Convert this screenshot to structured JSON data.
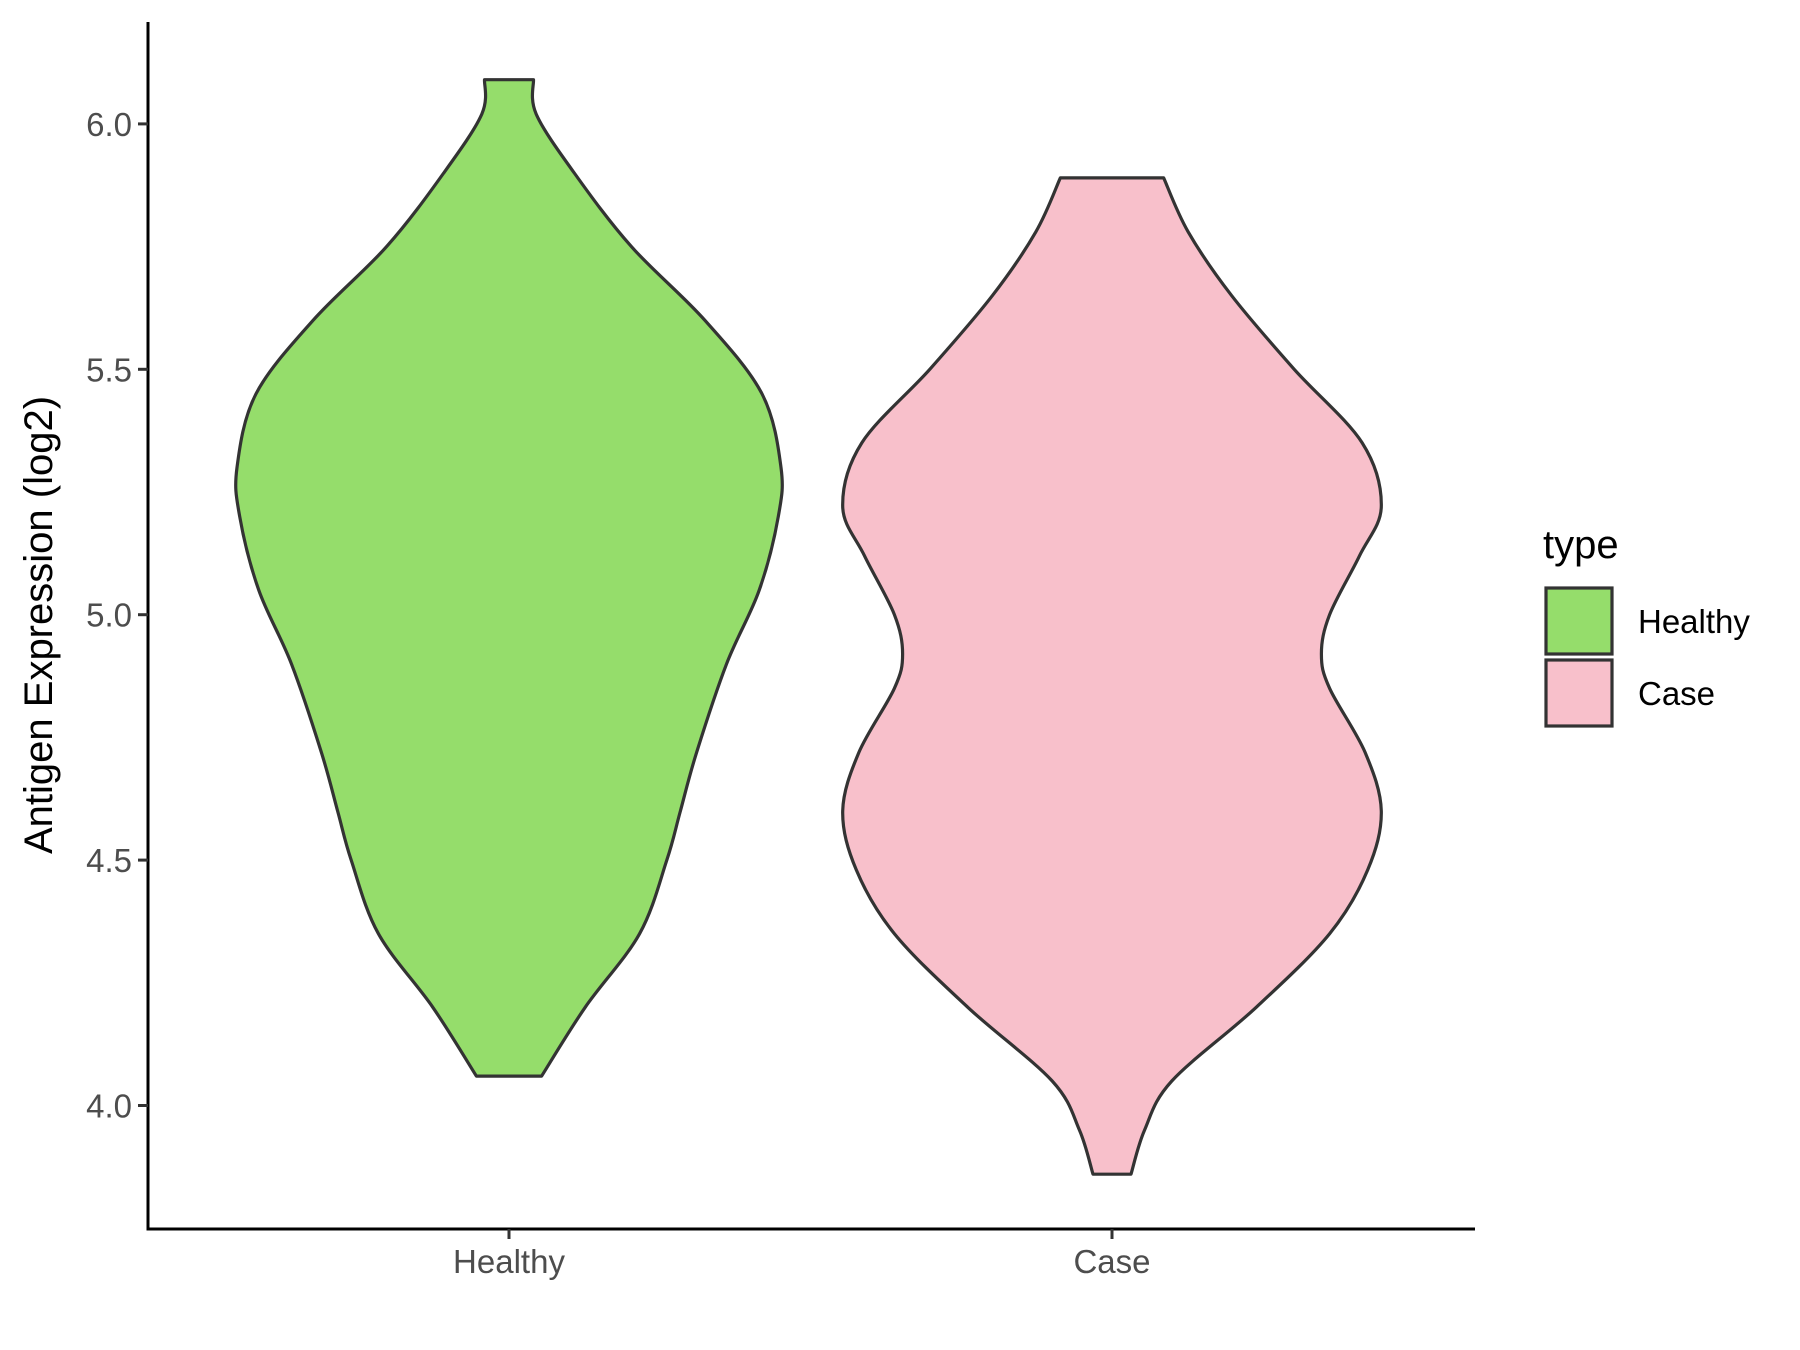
{
  "chart_data": {
    "type": "violin",
    "title": "",
    "xlabel": "",
    "ylabel": "Antigen Expression (log2)",
    "ylim": [
      3.75,
      6.2
    ],
    "yticks": [
      "4.0",
      "4.5",
      "5.0",
      "5.5",
      "6.0"
    ],
    "categories": [
      "Healthy",
      "Case"
    ],
    "legend": {
      "title": "type",
      "position": "right",
      "entries": [
        "Healthy",
        "Case"
      ]
    },
    "grid": false,
    "series": [
      {
        "name": "Healthy",
        "color": "#95dd6b",
        "min": 4.06,
        "max": 6.09,
        "density_profile": [
          [
            4.06,
            0.12
          ],
          [
            4.2,
            0.28
          ],
          [
            4.35,
            0.48
          ],
          [
            4.5,
            0.58
          ],
          [
            4.6,
            0.63
          ],
          [
            4.72,
            0.69
          ],
          [
            4.9,
            0.8
          ],
          [
            5.05,
            0.92
          ],
          [
            5.2,
            0.99
          ],
          [
            5.3,
            1.0
          ],
          [
            5.45,
            0.93
          ],
          [
            5.6,
            0.72
          ],
          [
            5.75,
            0.45
          ],
          [
            5.9,
            0.24
          ],
          [
            6.02,
            0.1
          ],
          [
            6.09,
            0.09
          ]
        ]
      },
      {
        "name": "Case",
        "color": "#f8c0cb",
        "min": 3.86,
        "max": 5.89,
        "density_profile": [
          [
            3.86,
            0.07
          ],
          [
            3.95,
            0.12
          ],
          [
            4.05,
            0.22
          ],
          [
            4.2,
            0.53
          ],
          [
            4.35,
            0.8
          ],
          [
            4.48,
            0.94
          ],
          [
            4.6,
            0.99
          ],
          [
            4.72,
            0.93
          ],
          [
            4.85,
            0.8
          ],
          [
            4.92,
            0.77
          ],
          [
            5.0,
            0.8
          ],
          [
            5.12,
            0.91
          ],
          [
            5.22,
            0.99
          ],
          [
            5.35,
            0.92
          ],
          [
            5.5,
            0.67
          ],
          [
            5.65,
            0.44
          ],
          [
            5.78,
            0.28
          ],
          [
            5.89,
            0.19
          ]
        ]
      }
    ]
  }
}
